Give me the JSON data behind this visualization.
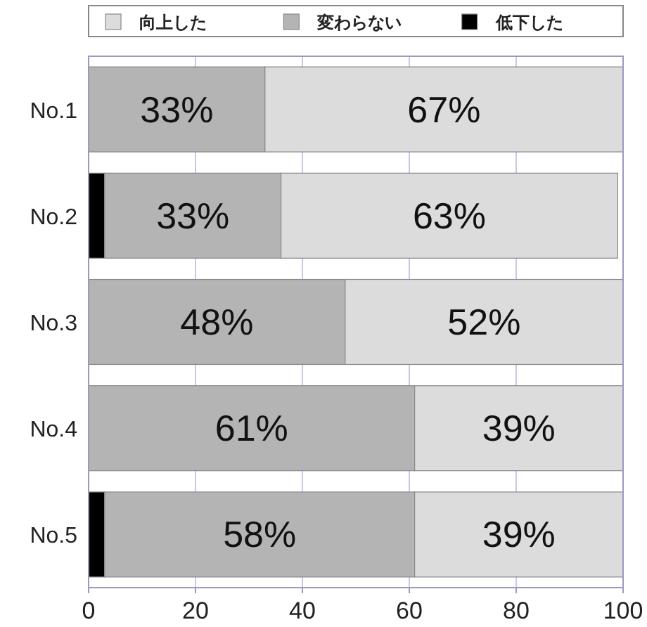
{
  "chart_data": {
    "type": "bar",
    "orientation": "horizontal",
    "stacked": true,
    "categories": [
      "No.1",
      "No.2",
      "No.3",
      "No.4",
      "No.5"
    ],
    "series": [
      {
        "name": "低下した",
        "color": "#000000",
        "values": [
          0,
          3,
          0,
          0,
          3
        ],
        "value_labels": [
          null,
          null,
          null,
          null,
          null
        ]
      },
      {
        "name": "変わらない",
        "color": "#b4b4b4",
        "values": [
          33,
          33,
          48,
          61,
          58
        ],
        "value_labels": [
          "33%",
          "33%",
          "48%",
          "61%",
          "58%"
        ]
      },
      {
        "name": "向上した",
        "color": "#dcdcdc",
        "values": [
          67,
          63,
          52,
          39,
          39
        ],
        "value_labels": [
          "67%",
          "63%",
          "52%",
          "39%",
          "39%"
        ]
      }
    ],
    "xlim": [
      0,
      100
    ],
    "xticks": [
      0,
      20,
      40,
      60,
      80,
      100
    ],
    "grid": "x",
    "legend": "top"
  }
}
